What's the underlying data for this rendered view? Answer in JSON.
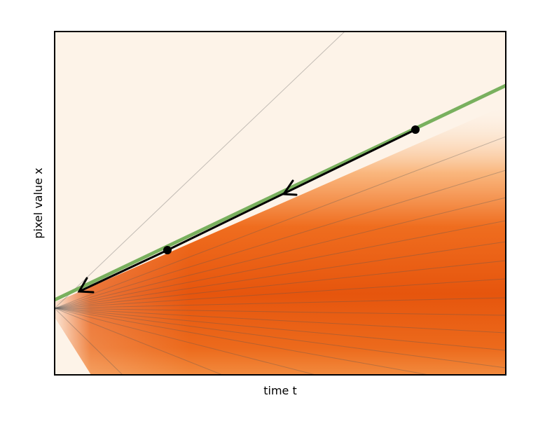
{
  "axes": {
    "x_label": "time t",
    "y_label": "pixel value x"
  }
}
